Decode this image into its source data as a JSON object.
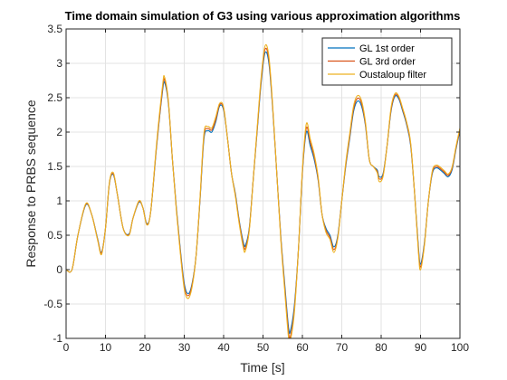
{
  "chart_data": {
    "type": "line",
    "title": "Time domain simulation of G3 using various approximation algorithms",
    "xlabel": "Time [s]",
    "ylabel": "Response to PRBS sequence",
    "xlim": [
      0,
      100
    ],
    "ylim": [
      -1,
      3.5
    ],
    "xticks": [
      0,
      10,
      20,
      30,
      40,
      50,
      60,
      70,
      80,
      90,
      100
    ],
    "xtick_labels": [
      "0",
      "10",
      "20",
      "30",
      "40",
      "50",
      "60",
      "70",
      "80",
      "90",
      "100"
    ],
    "yticks": [
      -1,
      -0.5,
      0,
      0.5,
      1,
      1.5,
      2,
      2.5,
      3,
      3.5
    ],
    "ytick_labels": [
      "-1",
      "-0.5",
      "0",
      "0.5",
      "1",
      "1.5",
      "2",
      "2.5",
      "3",
      "3.5"
    ],
    "grid": true,
    "legend_position": "top-right",
    "series": [
      {
        "name": "GL 1st order",
        "color": "#0072BD",
        "points": [
          [
            0,
            0
          ],
          [
            1.5,
            0
          ],
          [
            3,
            0.5
          ],
          [
            5,
            0.94
          ],
          [
            6.5,
            0.8
          ],
          [
            8,
            0.45
          ],
          [
            9,
            0.25
          ],
          [
            10,
            0.6
          ],
          [
            11,
            1.25
          ],
          [
            12,
            1.38
          ],
          [
            13,
            1.1
          ],
          [
            14.5,
            0.6
          ],
          [
            16,
            0.52
          ],
          [
            17,
            0.75
          ],
          [
            18.5,
            0.98
          ],
          [
            19.5,
            0.9
          ],
          [
            20.5,
            0.67
          ],
          [
            21.5,
            0.85
          ],
          [
            23,
            1.8
          ],
          [
            24.5,
            2.6
          ],
          [
            25,
            2.72
          ],
          [
            26,
            2.4
          ],
          [
            27,
            1.6
          ],
          [
            28,
            0.9
          ],
          [
            29,
            0.3
          ],
          [
            30,
            -0.2
          ],
          [
            31,
            -0.35
          ],
          [
            32,
            -0.2
          ],
          [
            33,
            0.2
          ],
          [
            34,
            1.0
          ],
          [
            35,
            1.9
          ],
          [
            36,
            2.02
          ],
          [
            37,
            2.0
          ],
          [
            38,
            2.15
          ],
          [
            39,
            2.38
          ],
          [
            40,
            2.32
          ],
          [
            41,
            1.9
          ],
          [
            42,
            1.4
          ],
          [
            43,
            1.1
          ],
          [
            44,
            0.7
          ],
          [
            45,
            0.4
          ],
          [
            45.5,
            0.35
          ],
          [
            46.5,
            0.6
          ],
          [
            47.5,
            1.3
          ],
          [
            48.5,
            2.0
          ],
          [
            49.5,
            2.7
          ],
          [
            50.5,
            3.15
          ],
          [
            51.5,
            3.0
          ],
          [
            52.5,
            2.3
          ],
          [
            53.5,
            1.4
          ],
          [
            54.5,
            0.5
          ],
          [
            55.5,
            -0.2
          ],
          [
            56.5,
            -0.85
          ],
          [
            57,
            -0.88
          ],
          [
            58,
            -0.5
          ],
          [
            59,
            0.3
          ],
          [
            60,
            1.4
          ],
          [
            61,
            2.0
          ],
          [
            62,
            1.8
          ],
          [
            63,
            1.6
          ],
          [
            64,
            1.3
          ],
          [
            65,
            0.8
          ],
          [
            66,
            0.6
          ],
          [
            67,
            0.5
          ],
          [
            68,
            0.33
          ],
          [
            69,
            0.5
          ],
          [
            70,
            1.0
          ],
          [
            71,
            1.5
          ],
          [
            72,
            1.9
          ],
          [
            73,
            2.3
          ],
          [
            74,
            2.45
          ],
          [
            75,
            2.38
          ],
          [
            76,
            2.1
          ],
          [
            77,
            1.6
          ],
          [
            78,
            1.5
          ],
          [
            79,
            1.45
          ],
          [
            79.5,
            1.35
          ],
          [
            80.5,
            1.4
          ],
          [
            81.5,
            1.8
          ],
          [
            82.5,
            2.3
          ],
          [
            83.5,
            2.52
          ],
          [
            84.5,
            2.48
          ],
          [
            85.5,
            2.3
          ],
          [
            86.5,
            2.1
          ],
          [
            87.5,
            1.8
          ],
          [
            88.5,
            1.1
          ],
          [
            89.5,
            0.3
          ],
          [
            90,
            0.08
          ],
          [
            91,
            0.4
          ],
          [
            92,
            1.0
          ],
          [
            93,
            1.4
          ],
          [
            94,
            1.48
          ],
          [
            95,
            1.45
          ],
          [
            96,
            1.4
          ],
          [
            97,
            1.35
          ],
          [
            98,
            1.45
          ],
          [
            99,
            1.75
          ],
          [
            100,
            2.02
          ]
        ]
      },
      {
        "name": "GL 3rd order",
        "color": "#D95319",
        "points": [
          [
            0,
            0
          ],
          [
            1.5,
            0
          ],
          [
            3,
            0.5
          ],
          [
            5,
            0.95
          ],
          [
            6.5,
            0.8
          ],
          [
            8,
            0.44
          ],
          [
            9,
            0.24
          ],
          [
            10,
            0.6
          ],
          [
            11,
            1.26
          ],
          [
            12,
            1.39
          ],
          [
            13,
            1.1
          ],
          [
            14.5,
            0.6
          ],
          [
            16,
            0.51
          ],
          [
            17,
            0.75
          ],
          [
            18.5,
            0.99
          ],
          [
            19.5,
            0.9
          ],
          [
            20.5,
            0.66
          ],
          [
            21.5,
            0.85
          ],
          [
            23,
            1.82
          ],
          [
            24.5,
            2.64
          ],
          [
            25,
            2.76
          ],
          [
            26,
            2.42
          ],
          [
            27,
            1.6
          ],
          [
            28,
            0.88
          ],
          [
            29,
            0.27
          ],
          [
            30,
            -0.24
          ],
          [
            31,
            -0.38
          ],
          [
            32,
            -0.22
          ],
          [
            33,
            0.2
          ],
          [
            34,
            1.02
          ],
          [
            35,
            1.94
          ],
          [
            36,
            2.05
          ],
          [
            37,
            2.03
          ],
          [
            38,
            2.18
          ],
          [
            39,
            2.4
          ],
          [
            40,
            2.34
          ],
          [
            41,
            1.9
          ],
          [
            42,
            1.4
          ],
          [
            43,
            1.08
          ],
          [
            44,
            0.68
          ],
          [
            45,
            0.36
          ],
          [
            45.5,
            0.31
          ],
          [
            46.5,
            0.58
          ],
          [
            47.5,
            1.3
          ],
          [
            48.5,
            2.02
          ],
          [
            49.5,
            2.74
          ],
          [
            50.5,
            3.2
          ],
          [
            51.5,
            3.05
          ],
          [
            52.5,
            2.32
          ],
          [
            53.5,
            1.4
          ],
          [
            54.5,
            0.48
          ],
          [
            55.5,
            -0.25
          ],
          [
            56.5,
            -0.92
          ],
          [
            57,
            -0.96
          ],
          [
            58,
            -0.55
          ],
          [
            59,
            0.3
          ],
          [
            60,
            1.42
          ],
          [
            61,
            2.06
          ],
          [
            62,
            1.85
          ],
          [
            63,
            1.64
          ],
          [
            64,
            1.32
          ],
          [
            65,
            0.8
          ],
          [
            66,
            0.57
          ],
          [
            67,
            0.47
          ],
          [
            68,
            0.29
          ],
          [
            69,
            0.48
          ],
          [
            70,
            1.0
          ],
          [
            71,
            1.52
          ],
          [
            72,
            1.93
          ],
          [
            73,
            2.34
          ],
          [
            74,
            2.49
          ],
          [
            75,
            2.42
          ],
          [
            76,
            2.12
          ],
          [
            77,
            1.6
          ],
          [
            78,
            1.5
          ],
          [
            79,
            1.43
          ],
          [
            79.5,
            1.32
          ],
          [
            80.5,
            1.38
          ],
          [
            81.5,
            1.8
          ],
          [
            82.5,
            2.32
          ],
          [
            83.5,
            2.54
          ],
          [
            84.5,
            2.5
          ],
          [
            85.5,
            2.32
          ],
          [
            86.5,
            2.12
          ],
          [
            87.5,
            1.82
          ],
          [
            88.5,
            1.1
          ],
          [
            89.5,
            0.26
          ],
          [
            90,
            0.04
          ],
          [
            91,
            0.38
          ],
          [
            92,
            1.0
          ],
          [
            93,
            1.42
          ],
          [
            94,
            1.5
          ],
          [
            95,
            1.47
          ],
          [
            96,
            1.42
          ],
          [
            97,
            1.37
          ],
          [
            98,
            1.47
          ],
          [
            99,
            1.77
          ],
          [
            100,
            2.04
          ]
        ]
      },
      {
        "name": "Oustaloup filter",
        "color": "#EDB120",
        "points": [
          [
            0,
            0
          ],
          [
            1.5,
            0
          ],
          [
            3,
            0.5
          ],
          [
            5,
            0.96
          ],
          [
            6.5,
            0.8
          ],
          [
            8,
            0.43
          ],
          [
            9,
            0.22
          ],
          [
            10,
            0.6
          ],
          [
            11,
            1.27
          ],
          [
            12,
            1.41
          ],
          [
            13,
            1.1
          ],
          [
            14.5,
            0.6
          ],
          [
            16,
            0.5
          ],
          [
            17,
            0.75
          ],
          [
            18.5,
            1.0
          ],
          [
            19.5,
            0.9
          ],
          [
            20.5,
            0.65
          ],
          [
            21.5,
            0.85
          ],
          [
            23,
            1.85
          ],
          [
            24.5,
            2.68
          ],
          [
            25,
            2.8
          ],
          [
            26,
            2.44
          ],
          [
            27,
            1.6
          ],
          [
            28,
            0.86
          ],
          [
            29,
            0.24
          ],
          [
            30,
            -0.28
          ],
          [
            31,
            -0.42
          ],
          [
            32,
            -0.25
          ],
          [
            33,
            0.2
          ],
          [
            34,
            1.04
          ],
          [
            35,
            1.98
          ],
          [
            36,
            2.08
          ],
          [
            37,
            2.06
          ],
          [
            38,
            2.22
          ],
          [
            39,
            2.42
          ],
          [
            40,
            2.36
          ],
          [
            41,
            1.9
          ],
          [
            42,
            1.4
          ],
          [
            43,
            1.06
          ],
          [
            44,
            0.65
          ],
          [
            45,
            0.32
          ],
          [
            45.5,
            0.27
          ],
          [
            46.5,
            0.56
          ],
          [
            47.5,
            1.3
          ],
          [
            48.5,
            2.05
          ],
          [
            49.5,
            2.78
          ],
          [
            50.5,
            3.25
          ],
          [
            51.5,
            3.1
          ],
          [
            52.5,
            2.35
          ],
          [
            53.5,
            1.4
          ],
          [
            54.5,
            0.45
          ],
          [
            55.5,
            -0.3
          ],
          [
            56.5,
            -1.0
          ],
          [
            57,
            -1.02
          ],
          [
            58,
            -0.6
          ],
          [
            59,
            0.3
          ],
          [
            60,
            1.45
          ],
          [
            61,
            2.12
          ],
          [
            62,
            1.9
          ],
          [
            63,
            1.68
          ],
          [
            64,
            1.35
          ],
          [
            65,
            0.8
          ],
          [
            66,
            0.54
          ],
          [
            67,
            0.44
          ],
          [
            68,
            0.25
          ],
          [
            69,
            0.46
          ],
          [
            70,
            1.0
          ],
          [
            71,
            1.55
          ],
          [
            72,
            1.97
          ],
          [
            73,
            2.38
          ],
          [
            74,
            2.53
          ],
          [
            75,
            2.46
          ],
          [
            76,
            2.15
          ],
          [
            77,
            1.6
          ],
          [
            78,
            1.5
          ],
          [
            79,
            1.41
          ],
          [
            79.5,
            1.28
          ],
          [
            80.5,
            1.36
          ],
          [
            81.5,
            1.8
          ],
          [
            82.5,
            2.35
          ],
          [
            83.5,
            2.56
          ],
          [
            84.5,
            2.52
          ],
          [
            85.5,
            2.34
          ],
          [
            86.5,
            2.14
          ],
          [
            87.5,
            1.84
          ],
          [
            88.5,
            1.1
          ],
          [
            89.5,
            0.22
          ],
          [
            90,
            0.0
          ],
          [
            91,
            0.36
          ],
          [
            92,
            1.0
          ],
          [
            93,
            1.44
          ],
          [
            94,
            1.52
          ],
          [
            95,
            1.49
          ],
          [
            96,
            1.44
          ],
          [
            97,
            1.39
          ],
          [
            98,
            1.49
          ],
          [
            99,
            1.79
          ],
          [
            100,
            2.06
          ]
        ]
      }
    ]
  }
}
